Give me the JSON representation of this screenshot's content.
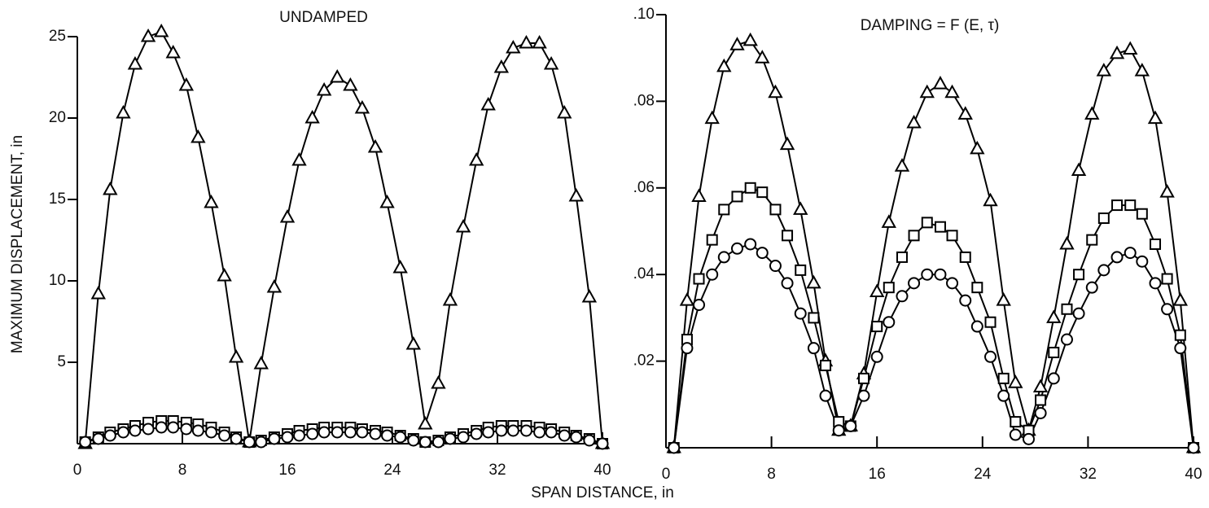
{
  "xlabel": "SPAN DISTANCE, in",
  "chart_data": [
    {
      "type": "line",
      "title": "UNDAMPED",
      "ylabel": "MAXIMUM DISPLACEMENT, in",
      "xlim": [
        0,
        40
      ],
      "xticks": [
        0,
        8,
        16,
        24,
        32,
        40
      ],
      "ylim": [
        0,
        25
      ],
      "yticks": [
        5,
        10,
        15,
        20,
        25
      ],
      "x": [
        0.6,
        1.6,
        2.5,
        3.5,
        4.4,
        5.4,
        6.4,
        7.3,
        8.3,
        9.2,
        10.2,
        11.2,
        12.1,
        13.1,
        14.0,
        15.0,
        16.0,
        16.9,
        17.9,
        18.8,
        19.8,
        20.8,
        21.7,
        22.7,
        23.6,
        24.6,
        25.6,
        26.5,
        27.5,
        28.4,
        29.4,
        30.4,
        31.3,
        32.3,
        33.2,
        34.2,
        35.2,
        36.1,
        37.1,
        38.0,
        39.0,
        40.0
      ],
      "series": [
        {
          "marker": "triangle",
          "color": "#000000",
          "values": [
            0,
            9.2,
            15.6,
            20.3,
            23.3,
            25.0,
            25.3,
            24.0,
            22.0,
            18.8,
            14.8,
            10.3,
            5.3,
            0.1,
            4.9,
            9.6,
            13.9,
            17.4,
            20.0,
            21.7,
            22.5,
            22.0,
            20.6,
            18.2,
            14.8,
            10.8,
            6.1,
            1.2,
            3.7,
            8.8,
            13.3,
            17.4,
            20.8,
            23.1,
            24.3,
            24.6,
            24.6,
            23.3,
            20.3,
            15.2,
            9.0,
            0
          ]
        },
        {
          "marker": "square",
          "color": "#000000",
          "values": [
            0.1,
            0.4,
            0.7,
            0.9,
            1.1,
            1.3,
            1.4,
            1.4,
            1.3,
            1.2,
            1.0,
            0.7,
            0.4,
            0.1,
            0.2,
            0.4,
            0.6,
            0.8,
            0.9,
            1.0,
            1.0,
            1.0,
            0.9,
            0.8,
            0.7,
            0.5,
            0.3,
            0.1,
            0.2,
            0.4,
            0.6,
            0.8,
            1.0,
            1.1,
            1.1,
            1.1,
            1.0,
            0.9,
            0.7,
            0.5,
            0.3,
            0
          ]
        },
        {
          "marker": "circle",
          "color": "#000000",
          "values": [
            0.1,
            0.3,
            0.5,
            0.7,
            0.8,
            0.9,
            1.0,
            1.0,
            0.9,
            0.8,
            0.7,
            0.5,
            0.3,
            0.1,
            0.1,
            0.3,
            0.4,
            0.5,
            0.6,
            0.7,
            0.7,
            0.7,
            0.7,
            0.6,
            0.5,
            0.4,
            0.2,
            0.1,
            0.1,
            0.3,
            0.4,
            0.6,
            0.7,
            0.8,
            0.8,
            0.8,
            0.7,
            0.7,
            0.5,
            0.4,
            0.2,
            0
          ]
        }
      ]
    },
    {
      "type": "line",
      "title": "DAMPING = F (E, τ)",
      "xlim": [
        0,
        40
      ],
      "xticks": [
        0,
        8,
        16,
        24,
        32,
        40
      ],
      "ylim": [
        0,
        0.1
      ],
      "yticks": [
        {
          "value": 0.02,
          "label": ".02"
        },
        {
          "value": 0.04,
          "label": ".04"
        },
        {
          "value": 0.06,
          "label": ".06"
        },
        {
          "value": 0.08,
          "label": ".08"
        },
        {
          "value": 0.1,
          "label": ".10"
        }
      ],
      "x": [
        0.6,
        1.6,
        2.5,
        3.5,
        4.4,
        5.4,
        6.4,
        7.3,
        8.3,
        9.2,
        10.2,
        11.2,
        12.1,
        13.1,
        14.0,
        15.0,
        16.0,
        16.9,
        17.9,
        18.8,
        19.8,
        20.8,
        21.7,
        22.7,
        23.6,
        24.6,
        25.6,
        26.5,
        27.5,
        28.4,
        29.4,
        30.4,
        31.3,
        32.3,
        33.2,
        34.2,
        35.2,
        36.1,
        37.1,
        38.0,
        39.0,
        40.0
      ],
      "series": [
        {
          "marker": "triangle",
          "color": "#000000",
          "values": [
            0,
            0.034,
            0.058,
            0.076,
            0.088,
            0.093,
            0.094,
            0.09,
            0.082,
            0.07,
            0.055,
            0.038,
            0.02,
            0.004,
            0.005,
            0.017,
            0.036,
            0.052,
            0.065,
            0.075,
            0.082,
            0.084,
            0.082,
            0.077,
            0.069,
            0.057,
            0.034,
            0.015,
            0.004,
            0.014,
            0.03,
            0.047,
            0.064,
            0.077,
            0.087,
            0.091,
            0.092,
            0.087,
            0.076,
            0.059,
            0.034,
            0
          ]
        },
        {
          "marker": "square",
          "color": "#000000",
          "values": [
            0,
            0.025,
            0.039,
            0.048,
            0.055,
            0.058,
            0.06,
            0.059,
            0.055,
            0.049,
            0.041,
            0.03,
            0.019,
            0.006,
            0.005,
            0.016,
            0.028,
            0.037,
            0.044,
            0.049,
            0.052,
            0.051,
            0.049,
            0.044,
            0.037,
            0.029,
            0.016,
            0.006,
            0.004,
            0.011,
            0.022,
            0.032,
            0.04,
            0.048,
            0.053,
            0.056,
            0.056,
            0.054,
            0.047,
            0.039,
            0.026,
            0
          ]
        },
        {
          "marker": "circle",
          "color": "#000000",
          "values": [
            0,
            0.023,
            0.033,
            0.04,
            0.044,
            0.046,
            0.047,
            0.045,
            0.042,
            0.038,
            0.031,
            0.023,
            0.012,
            0.004,
            0.005,
            0.012,
            0.021,
            0.029,
            0.035,
            0.038,
            0.04,
            0.04,
            0.038,
            0.034,
            0.028,
            0.021,
            0.012,
            0.003,
            0.002,
            0.008,
            0.016,
            0.025,
            0.031,
            0.037,
            0.041,
            0.044,
            0.045,
            0.043,
            0.038,
            0.032,
            0.023,
            0
          ]
        }
      ]
    }
  ]
}
